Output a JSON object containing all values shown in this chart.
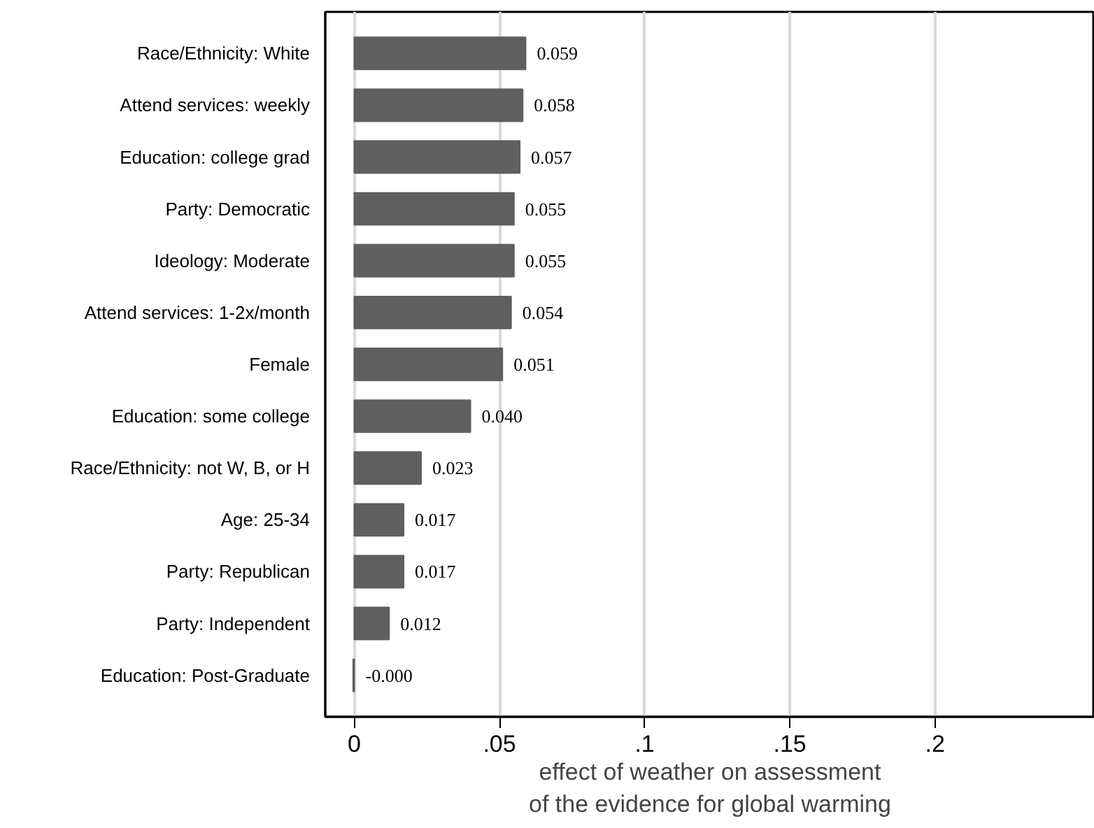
{
  "chart_data": {
    "type": "bar",
    "orientation": "horizontal",
    "xlabel": "effect of weather on assessment\nof the evidence for global warming",
    "categories": [
      "Race/Ethnicity: White",
      "Attend services: weekly",
      "Education: college grad",
      "Party: Democratic",
      "Ideology: Moderate",
      "Attend services: 1-2x/month",
      "Female",
      "Education: some college",
      "Race/Ethnicity: not W, B, or H",
      "Age: 25-34",
      "Party: Republican",
      "Party: Independent",
      "Education: Post-Graduate"
    ],
    "values": [
      0.059,
      0.058,
      0.057,
      0.055,
      0.055,
      0.054,
      0.051,
      0.04,
      0.023,
      0.017,
      0.017,
      0.012,
      -0.0004
    ],
    "value_labels": [
      "0.059",
      "0.058",
      "0.057",
      "0.055",
      "0.055",
      "0.054",
      "0.051",
      "0.040",
      "0.023",
      "0.017",
      "0.017",
      "0.012",
      "-0.000"
    ],
    "color": "#5f5f5f",
    "xlim": [
      -0.01,
      0.255
    ],
    "xticks": [
      0,
      {
        "value": 0.05,
        "label": ".05"
      },
      {
        "value": 0.1,
        "label": ".1"
      },
      {
        "value": 0.15,
        "label": ".15"
      },
      {
        "value": 0.2,
        "label": ".2"
      }
    ],
    "grid": "x"
  }
}
